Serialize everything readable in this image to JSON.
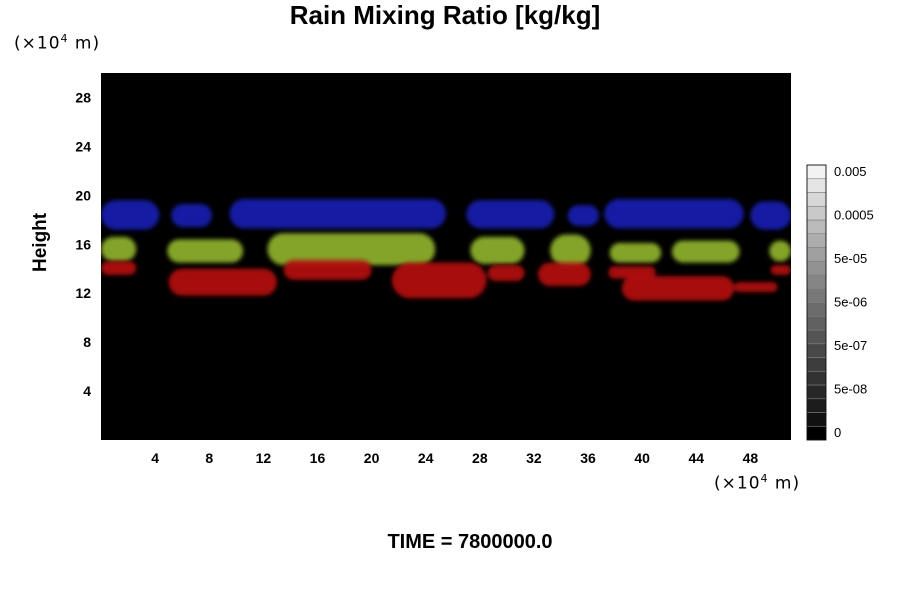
{
  "chart_data": {
    "type": "heatmap",
    "title": "Rain Mixing Ratio [kg/kg]",
    "ylabel": "Height",
    "unit_y": {
      "prefix": "(×10",
      "exp": "4",
      "suffix": " m)"
    },
    "unit_x": {
      "prefix": "(×10",
      "exp": "4",
      "suffix": " m)"
    },
    "xlim": [
      0,
      51
    ],
    "ylim": [
      0,
      30
    ],
    "xticks": [
      4,
      8,
      12,
      16,
      20,
      24,
      28,
      32,
      36,
      40,
      44,
      48
    ],
    "yticks": [
      4,
      8,
      12,
      16,
      20,
      24,
      28
    ],
    "background_color": "#000000",
    "layers": [
      {
        "color": "#1a1fb0",
        "blobs": [
          {
            "x0": 0,
            "x1": 4.3,
            "y0": 17.2,
            "y1": 19.6
          },
          {
            "x0": 5.2,
            "x1": 8.2,
            "y0": 17.4,
            "y1": 19.3
          },
          {
            "x0": 9.5,
            "x1": 25.5,
            "y0": 17.3,
            "y1": 19.7
          },
          {
            "x0": 27,
            "x1": 33.5,
            "y0": 17.3,
            "y1": 19.6
          },
          {
            "x0": 34.5,
            "x1": 36.8,
            "y0": 17.5,
            "y1": 19.2
          },
          {
            "x0": 37.2,
            "x1": 47.5,
            "y0": 17.3,
            "y1": 19.7
          },
          {
            "x0": 48,
            "x1": 51,
            "y0": 17.2,
            "y1": 19.5
          }
        ]
      },
      {
        "color": "#8fb22a",
        "blobs": [
          {
            "x0": 0,
            "x1": 2.6,
            "y0": 14.6,
            "y1": 16.6
          },
          {
            "x0": 4.9,
            "x1": 10.5,
            "y0": 14.5,
            "y1": 16.4
          },
          {
            "x0": 12.3,
            "x1": 24.7,
            "y0": 14.3,
            "y1": 16.9
          },
          {
            "x0": 27.3,
            "x1": 31.3,
            "y0": 14.4,
            "y1": 16.6
          },
          {
            "x0": 33.2,
            "x1": 36.2,
            "y0": 14.2,
            "y1": 16.8
          },
          {
            "x0": 37.6,
            "x1": 41.4,
            "y0": 14.5,
            "y1": 16.1
          },
          {
            "x0": 42.2,
            "x1": 47.2,
            "y0": 14.5,
            "y1": 16.3
          },
          {
            "x0": 49.4,
            "x1": 51,
            "y0": 14.6,
            "y1": 16.3
          }
        ]
      },
      {
        "color": "#b51212",
        "blobs": [
          {
            "x0": 0,
            "x1": 2.6,
            "y0": 13.5,
            "y1": 14.6
          },
          {
            "x0": 5,
            "x1": 13,
            "y0": 11.8,
            "y1": 14.0
          },
          {
            "x0": 13.5,
            "x1": 20,
            "y0": 13.1,
            "y1": 14.7
          },
          {
            "x0": 21.5,
            "x1": 28.5,
            "y0": 11.6,
            "y1": 14.5
          },
          {
            "x0": 28.6,
            "x1": 31.3,
            "y0": 13.0,
            "y1": 14.3
          },
          {
            "x0": 32.3,
            "x1": 36.2,
            "y0": 12.6,
            "y1": 14.5
          },
          {
            "x0": 37.5,
            "x1": 41,
            "y0": 13.2,
            "y1": 14.2
          },
          {
            "x0": 38.5,
            "x1": 46.8,
            "y0": 11.4,
            "y1": 13.4
          },
          {
            "x0": 46.8,
            "x1": 50,
            "y0": 12.1,
            "y1": 12.9
          },
          {
            "x0": 49.5,
            "x1": 51,
            "y0": 13.5,
            "y1": 14.3
          }
        ]
      }
    ],
    "colorbar": {
      "labels": [
        "0",
        "5e-08",
        "5e-07",
        "5e-06",
        "5e-05",
        "0.0005",
        "0.005"
      ],
      "colors": [
        "#000000",
        "#111111",
        "#1c1c1c",
        "#272727",
        "#323232",
        "#3d3d3d",
        "#484848",
        "#545454",
        "#606060",
        "#6c6c6c",
        "#787878",
        "#858585",
        "#929292",
        "#9f9f9f",
        "#adadad",
        "#bbbbbb",
        "#c9c9c9",
        "#d7d7d7",
        "#e5e5e5",
        "#f2f2f2"
      ]
    }
  },
  "time_label": "TIME = 7800000.0"
}
